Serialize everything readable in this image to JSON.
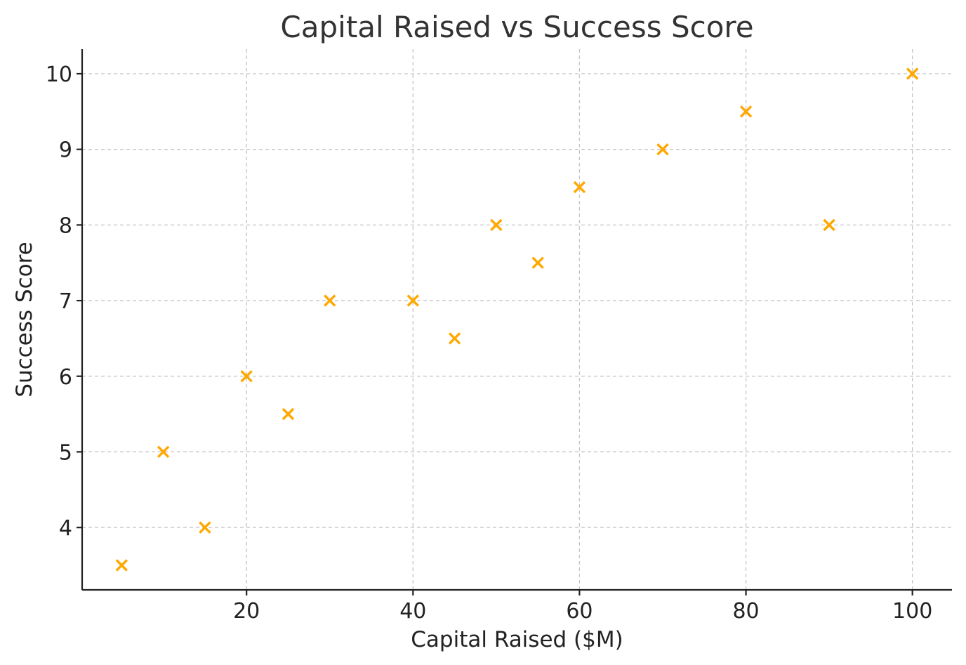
{
  "chart_data": {
    "type": "scatter",
    "title": "Capital Raised vs Success Score",
    "xlabel": "Capital Raised ($M)",
    "ylabel": "Success Score",
    "xlim": [
      0.25,
      104.75
    ],
    "ylim": [
      3.175,
      10.325
    ],
    "xticks": [
      20,
      40,
      60,
      80,
      100
    ],
    "yticks": [
      4,
      5,
      6,
      7,
      8,
      9,
      10
    ],
    "grid": true,
    "marker": "x",
    "color": "#FFA800",
    "x": [
      5,
      10,
      15,
      20,
      25,
      30,
      40,
      45,
      50,
      55,
      60,
      70,
      80,
      90,
      100
    ],
    "y": [
      3.5,
      5,
      4,
      6,
      5.5,
      7,
      7,
      6.5,
      8,
      7.5,
      8.5,
      9,
      9.5,
      8,
      10
    ]
  }
}
